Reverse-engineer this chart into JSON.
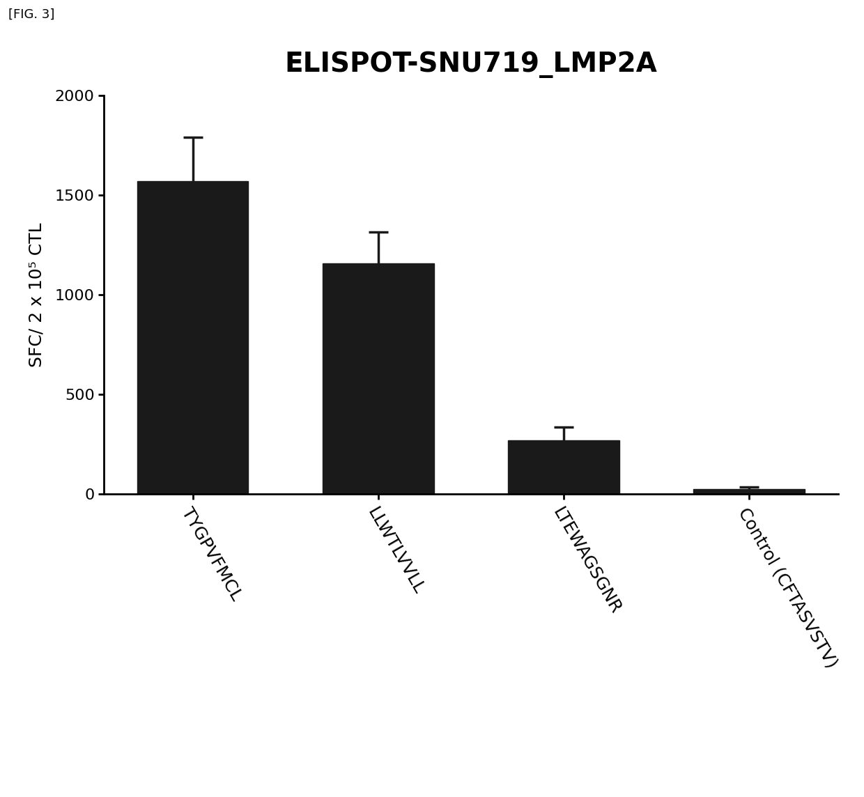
{
  "title": "ELISPOT-SNU719_LMP2A",
  "categories": [
    "TYGPVFMCL",
    "LLWTLVVLL",
    "LTEWAGSGNR",
    "Control (CFTASVSTV)"
  ],
  "values": [
    1570,
    1160,
    270,
    25
  ],
  "errors": [
    220,
    155,
    65,
    10
  ],
  "bar_color": "#1a1a1a",
  "ylabel": "SFC/ 2 x 10⁵ CTL",
  "ylim": [
    0,
    2000
  ],
  "yticks": [
    0,
    500,
    1000,
    1500,
    2000
  ],
  "bar_width": 0.6,
  "fig_label": "[FIG. 3]",
  "background_color": "#ffffff",
  "title_fontsize": 28,
  "ylabel_fontsize": 18,
  "tick_fontsize": 16,
  "xlabel_fontsize": 18
}
